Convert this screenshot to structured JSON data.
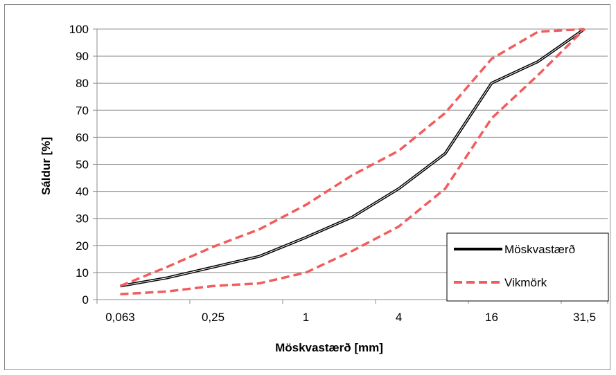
{
  "chart_data": {
    "type": "line",
    "xlabel": "Möskvastærð [mm]",
    "ylabel": "Sáldur [%]",
    "categories": [
      "0,063",
      "",
      "0,25",
      "",
      "1",
      "",
      "4",
      "",
      "16",
      "",
      "31,5"
    ],
    "ylim": [
      0,
      100
    ],
    "ytick_step": 10,
    "grid": "horizontal",
    "legend_position": "bottom-right",
    "series": [
      {
        "name": "Möskvastærð",
        "color": "#000000",
        "style": "solid",
        "values": [
          5,
          8,
          12,
          16,
          23,
          30.5,
          41,
          54,
          80,
          88,
          100
        ]
      },
      {
        "name": "Vikmörk",
        "color": "#f25c5c",
        "style": "dashed",
        "values": [
          5,
          12,
          19.5,
          26,
          35,
          46,
          55,
          69,
          89,
          99,
          100
        ]
      },
      {
        "name": "",
        "color": "#f25c5c",
        "style": "dashed",
        "values": [
          2,
          3,
          5,
          6,
          10,
          18,
          27,
          41,
          67,
          83,
          100
        ]
      }
    ]
  }
}
